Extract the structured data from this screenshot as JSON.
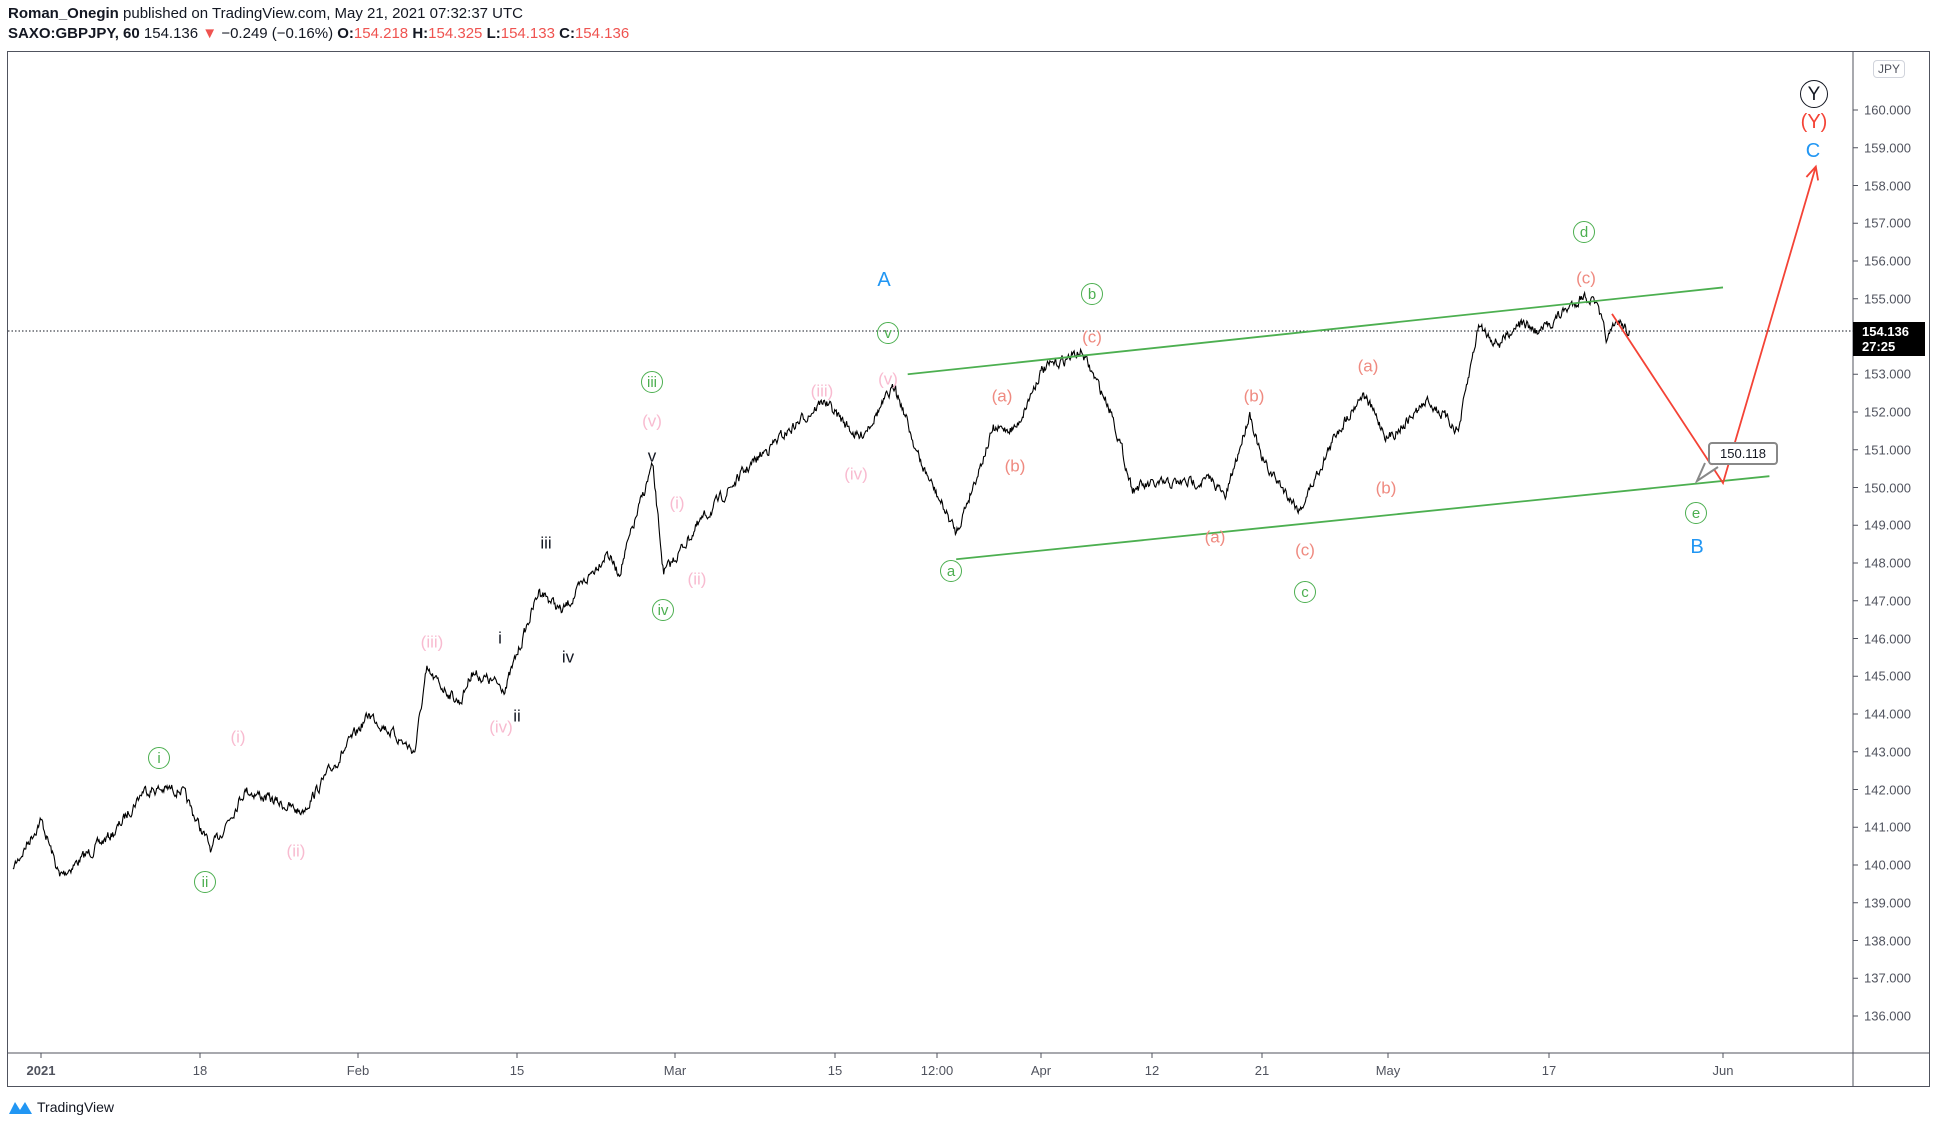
{
  "header": {
    "author": "Roman_Onegin",
    "published": "published on TradingView.com, May 21, 2021 07:32:37 UTC",
    "symbol": "SAXO:GBPJPY, 60",
    "last": "154.136",
    "change": "−0.249 (−0.16%)",
    "change_direction_icon": "triangle-down-icon",
    "o_label": "O:",
    "o": "154.218",
    "h_label": "H:",
    "h": "154.325",
    "l_label": "L:",
    "l": "154.133",
    "c_label": "C:",
    "c": "154.136"
  },
  "price_axis": {
    "currency": "JPY",
    "last_price": "154.136",
    "countdown": "27:25",
    "ticks": [
      "160.000",
      "159.000",
      "158.000",
      "157.000",
      "156.000",
      "155.000",
      "153.000",
      "152.000",
      "151.000",
      "150.000",
      "149.000",
      "148.000",
      "147.000",
      "146.000",
      "145.000",
      "144.000",
      "143.000",
      "142.000",
      "141.000",
      "140.000",
      "139.000",
      "138.000",
      "137.000",
      "136.000"
    ]
  },
  "time_axis": {
    "ticks": [
      "2021",
      "18",
      "Feb",
      "15",
      "Mar",
      "15",
      "12:00",
      "Apr",
      "12",
      "21",
      "May",
      "17",
      "Jun"
    ]
  },
  "callout": "150.118",
  "annotations": {
    "circled_green": [
      "i",
      "ii",
      "iii",
      "iv",
      "v",
      "b",
      "a",
      "c",
      "d",
      "e"
    ],
    "minor_pink": [
      "(i)",
      "(ii)",
      "(iii)",
      "(iv)",
      "(v)",
      "(i)",
      "(ii)",
      "(iii)",
      "(iv)",
      "(v)"
    ],
    "abc_salmon": [
      "(a)",
      "(b)",
      "(c)",
      "(a)",
      "(b)",
      "(c)",
      "(a)",
      "(b)",
      "(c)"
    ],
    "sub_black": [
      "i",
      "ii",
      "iii",
      "iv",
      "v"
    ],
    "blue": [
      "A",
      "B",
      "C"
    ],
    "red_Y": "(Y)",
    "black_Y": "Y"
  },
  "colors": {
    "up_trendline": "#4caf50",
    "projection": "#f44336",
    "price": "#000000",
    "negative": "#ef5350"
  },
  "chart_data": {
    "type": "line",
    "title": "SAXO:GBPJPY, 60",
    "ylim": [
      135.2,
      161.6
    ],
    "grid": false,
    "series": [
      {
        "values": [
          [
            "2020-12-29",
            139.9
          ],
          [
            "2021-01-01",
            141.2
          ],
          [
            "2021-01-03",
            139.7
          ],
          [
            "2021-01-09",
            140.9
          ],
          [
            "2021-01-12",
            142.0
          ],
          [
            "2021-01-16",
            142.0
          ],
          [
            "2021-01-19",
            140.4
          ],
          [
            "2021-01-22",
            142.0
          ],
          [
            "2021-01-27",
            141.4
          ],
          [
            "2021-02-02",
            144.0
          ],
          [
            "2021-02-06",
            143.0
          ],
          [
            "2021-02-07",
            145.1
          ],
          [
            "2021-02-10",
            144.3
          ],
          [
            "2021-02-11",
            145.1
          ],
          [
            "2021-02-14",
            144.7
          ],
          [
            "2021-02-17",
            147.3
          ],
          [
            "2021-02-19",
            146.7
          ],
          [
            "2021-02-23",
            148.3
          ],
          [
            "2021-02-24",
            147.7
          ],
          [
            "2021-02-27",
            150.6
          ],
          [
            "2021-02-28",
            147.7
          ],
          [
            "2021-03-03",
            149.0
          ],
          [
            "2021-03-07",
            150.4
          ],
          [
            "2021-03-09",
            151.0
          ],
          [
            "2021-03-14",
            152.3
          ],
          [
            "2021-03-17",
            151.3
          ],
          [
            "2021-03-20",
            152.7
          ],
          [
            "2021-03-22",
            150.7
          ],
          [
            "2021-03-25",
            148.8
          ],
          [
            "2021-03-28",
            151.5
          ],
          [
            "2021-03-30",
            151.6
          ],
          [
            "2021-04-01",
            153.1
          ],
          [
            "2021-04-05",
            153.6
          ],
          [
            "2021-04-08",
            152.0
          ],
          [
            "2021-04-10",
            150.0
          ],
          [
            "2021-04-17",
            150.2
          ],
          [
            "2021-04-18",
            149.7
          ],
          [
            "2021-04-20",
            152.0
          ],
          [
            "2021-04-21",
            150.7
          ],
          [
            "2021-04-24",
            149.4
          ],
          [
            "2021-04-27",
            151.5
          ],
          [
            "2021-04-29",
            152.5
          ],
          [
            "2021-05-01",
            151.3
          ],
          [
            "2021-05-05",
            152.3
          ],
          [
            "2021-05-08",
            151.5
          ],
          [
            "2021-05-10",
            154.3
          ],
          [
            "2021-05-12",
            153.8
          ],
          [
            "2021-05-14",
            154.4
          ],
          [
            "2021-05-16",
            154.1
          ],
          [
            "2021-05-20",
            155.1
          ],
          [
            "2021-05-21",
            154.9
          ],
          [
            "2021-05-22",
            153.9
          ],
          [
            "2021-05-23",
            154.4
          ],
          [
            "2021-05-24",
            154.136
          ]
        ]
      }
    ],
    "trendlines": [
      {
        "name": "upper-channel",
        "from": [
          "2021-03-21",
          153.0
        ],
        "to": [
          "2021-06-01",
          155.3
        ]
      },
      {
        "name": "lower-channel",
        "from": [
          "2021-03-25",
          148.1
        ],
        "to": [
          "2021-06-05",
          150.3
        ]
      }
    ],
    "projection": [
      [
        "2021-05-24",
        154.6
      ],
      [
        "2021-06-01",
        150.118
      ],
      [
        "2021-06-09",
        158.5
      ]
    ]
  }
}
